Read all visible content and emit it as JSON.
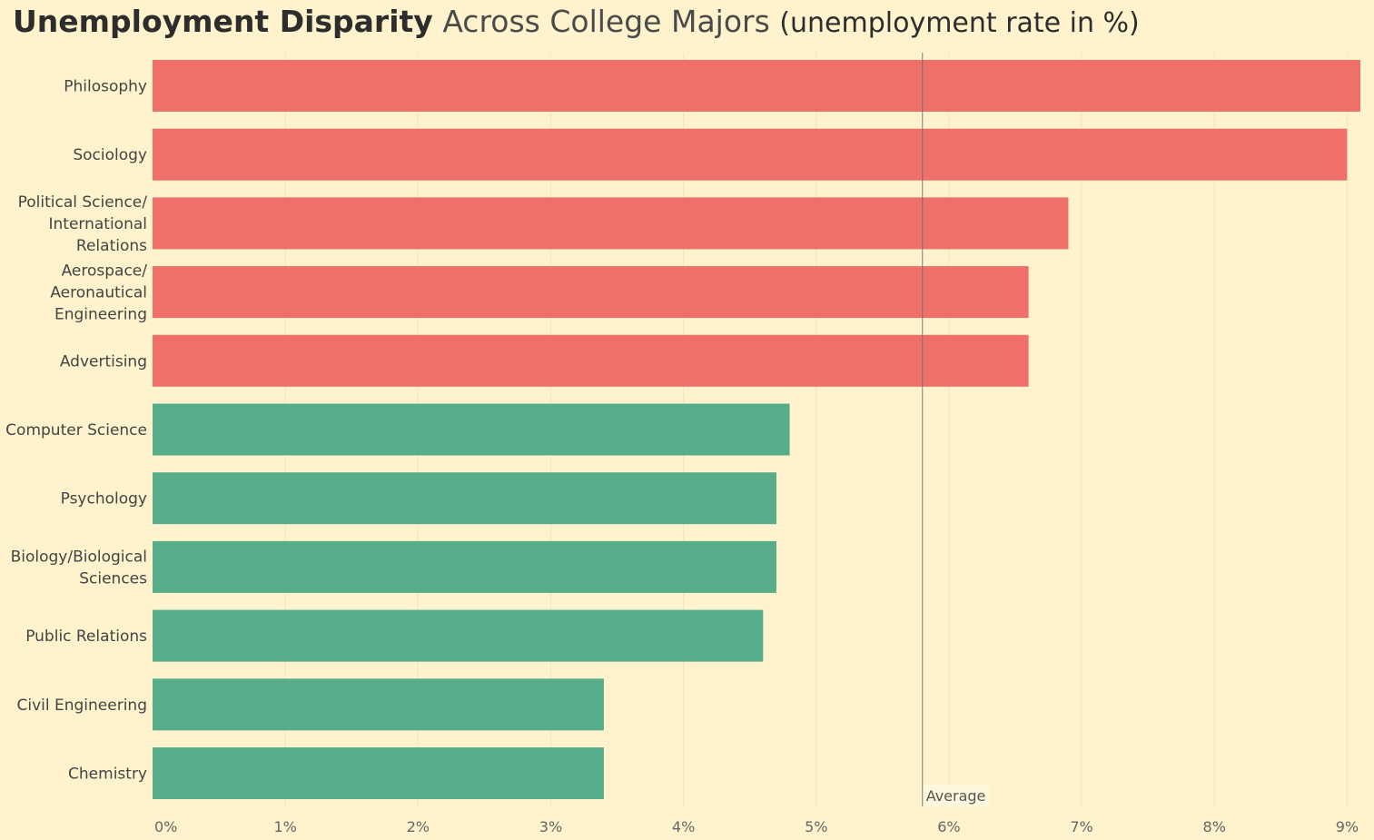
{
  "title": {
    "bold": "Unemployment Disparity",
    "light": "Across College Majors",
    "unit": "(unemployment rate in %)"
  },
  "colors": {
    "background": "#fef3cd",
    "above_average": "#ef6f69",
    "below_average": "#57ac89",
    "average_line": "#8a8a8a"
  },
  "chart_data": {
    "type": "bar",
    "orientation": "horizontal",
    "title": "Unemployment Disparity Across College Majors (unemployment rate in %)",
    "xlabel": "",
    "ylabel": "",
    "categories": [
      [
        "Philosophy"
      ],
      [
        "Sociology"
      ],
      [
        "Political Science/",
        "International",
        "Relations"
      ],
      [
        "Aerospace/",
        "Aeronautical",
        "Engineering"
      ],
      [
        "Advertising"
      ],
      [
        "Computer Science"
      ],
      [
        "Psychology"
      ],
      [
        "Biology/Biological",
        "Sciences"
      ],
      [
        "Public Relations"
      ],
      [
        "Civil Engineering"
      ],
      [
        "Chemistry"
      ]
    ],
    "values": [
      9.1,
      9.0,
      6.9,
      6.6,
      6.6,
      4.8,
      4.7,
      4.7,
      4.6,
      3.4,
      3.4
    ],
    "xlim": [
      0,
      9.1
    ],
    "xticks": [
      0,
      1,
      2,
      3,
      4,
      5,
      6,
      7,
      8,
      9
    ],
    "xtick_labels": [
      "0%",
      "1%",
      "2%",
      "3%",
      "4%",
      "5%",
      "6%",
      "7%",
      "8%",
      "9%"
    ],
    "reference_line": {
      "label": "Average",
      "value": 5.8
    },
    "grid": "vertical",
    "legend": "none"
  }
}
